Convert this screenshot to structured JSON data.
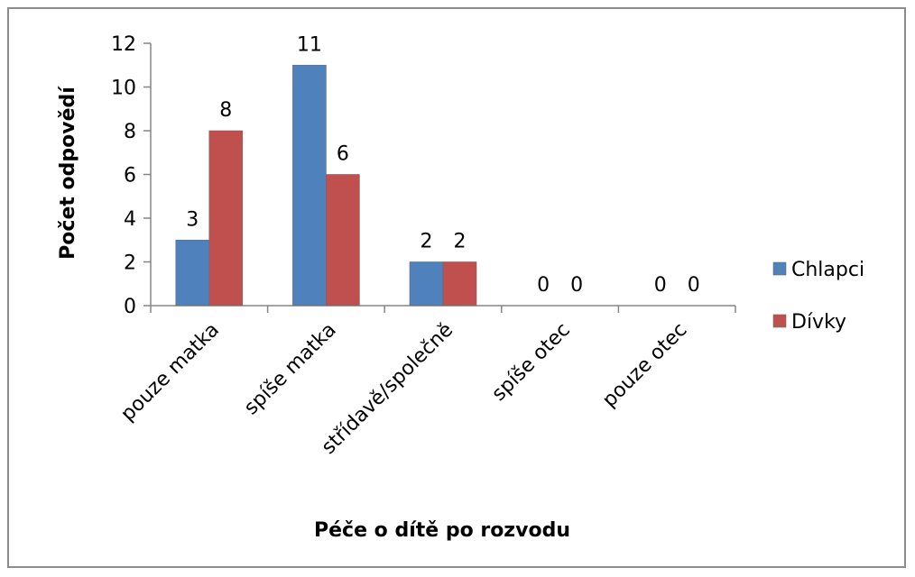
{
  "chart_data": {
    "type": "bar",
    "categories": [
      "pouze matka",
      "spíše matka",
      "střídavě/společně",
      "spíše otec",
      "pouze otec"
    ],
    "series": [
      {
        "name": "Chlapci",
        "values": [
          3,
          11,
          2,
          0,
          0
        ],
        "color": "#4f81bd"
      },
      {
        "name": "Dívky",
        "values": [
          8,
          6,
          2,
          0,
          0
        ],
        "color": "#c0504d"
      }
    ],
    "title": "",
    "xlabel": "Péče o dítě po rozvodu",
    "ylabel": "Počet odpovědí",
    "ylim": [
      0,
      12
    ],
    "yticks": [
      0,
      2,
      4,
      6,
      8,
      10,
      12
    ],
    "grid": false,
    "legend_position": "right",
    "data_labels": true
  }
}
